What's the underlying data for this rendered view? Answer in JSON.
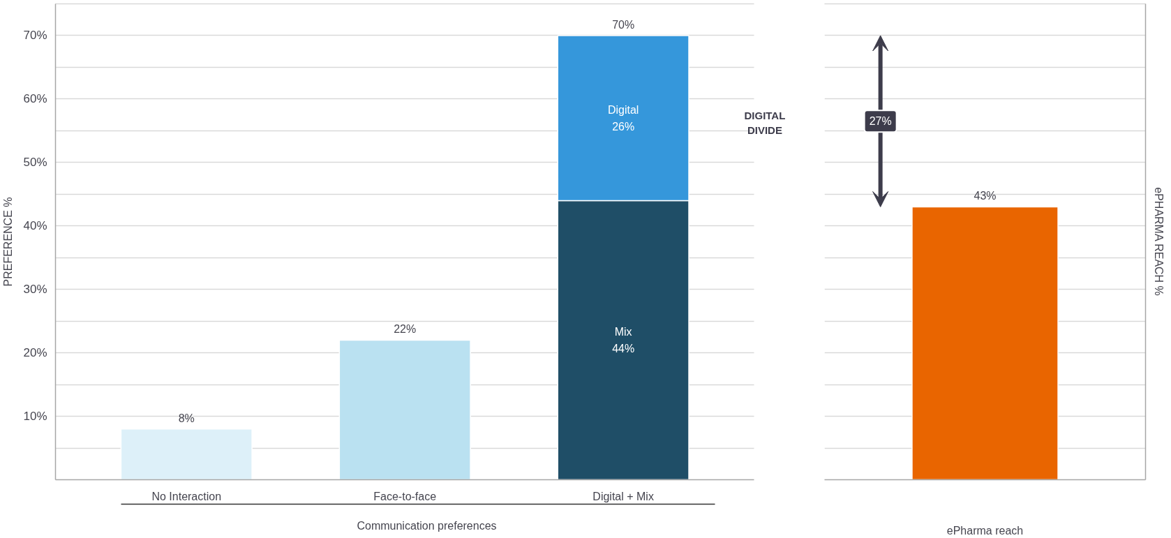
{
  "chart_data": [
    {
      "type": "bar",
      "stacked": true,
      "categories": [
        "No Interaction",
        "Face-to-face",
        "Digital + Mix"
      ],
      "series": [
        {
          "colors": [
            "#ddf0f9",
            "#bae1f1",
            null
          ],
          "values": [
            8,
            22,
            null
          ]
        },
        {
          "name": "Mix",
          "color": "#1f4e67",
          "values": [
            null,
            null,
            44
          ],
          "value_labels": [
            null,
            null,
            "44%"
          ]
        },
        {
          "name": "Digital",
          "color": "#3597db",
          "values": [
            null,
            null,
            26
          ],
          "value_labels": [
            null,
            null,
            "26%"
          ]
        }
      ],
      "totals": [
        "8%",
        "22%",
        "70%"
      ],
      "xlabel": "Communication preferences",
      "ylabel": "PREFERENCE %",
      "ylim": [
        0,
        75
      ],
      "yticks": [
        {
          "value": 5,
          "label": null
        },
        {
          "value": 10,
          "label": "10%"
        },
        {
          "value": 15,
          "label": null
        },
        {
          "value": 20,
          "label": "20%"
        },
        {
          "value": 25,
          "label": null
        },
        {
          "value": 30,
          "label": "30%"
        },
        {
          "value": 35,
          "label": null
        },
        {
          "value": 40,
          "label": "40%"
        },
        {
          "value": 45,
          "label": null
        },
        {
          "value": 50,
          "label": "50%"
        },
        {
          "value": 55,
          "label": null
        },
        {
          "value": 60,
          "label": "60%"
        },
        {
          "value": 65,
          "label": null
        },
        {
          "value": 70,
          "label": "70%"
        },
        {
          "value": 75,
          "label": null
        }
      ],
      "grid": "y",
      "annotations": [
        "DIGITAL DIVIDE"
      ]
    },
    {
      "type": "bar",
      "categories": [
        null
      ],
      "values": [
        43
      ],
      "color": "#e96500",
      "value_labels": [
        "43%"
      ],
      "xlabel": "ePharma reach",
      "ylabel": "ePHARMA REACH %",
      "ylim": [
        0,
        75
      ],
      "yticks": [
        5,
        10,
        15,
        20,
        25,
        30,
        35,
        40,
        45,
        50,
        55,
        60,
        65,
        70,
        75
      ],
      "tick_labels": false,
      "grid": "y",
      "annotations": [
        "27%"
      ]
    }
  ]
}
